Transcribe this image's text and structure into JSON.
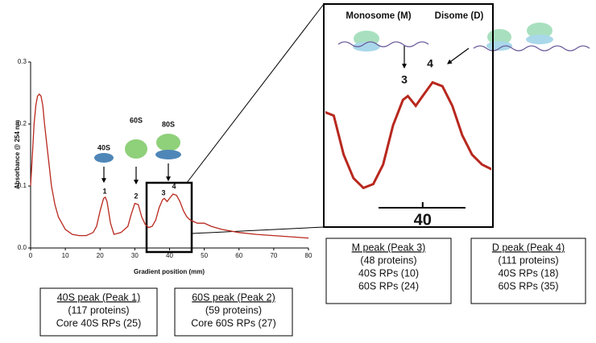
{
  "chart_data": {
    "type": "line",
    "ylabel": "Absorbance @ 254 nm",
    "xlabel": "Gradient position (mm)",
    "color": "#b8281e",
    "x": [
      0,
      0.5,
      1,
      1.5,
      2,
      2.5,
      3,
      3.5,
      4,
      5,
      6,
      7,
      8,
      10,
      12,
      14,
      16,
      18,
      19,
      20,
      21,
      21.5,
      22,
      23,
      24,
      26,
      28,
      29,
      30,
      31,
      32,
      33,
      34,
      35,
      36,
      37,
      38,
      38.5,
      39.3,
      40,
      41,
      42,
      43,
      44,
      45,
      46,
      48,
      50,
      52,
      55,
      60,
      65,
      70,
      75,
      80
    ],
    "values": [
      0.1,
      0.15,
      0.2,
      0.23,
      0.245,
      0.248,
      0.245,
      0.23,
      0.2,
      0.15,
      0.1,
      0.07,
      0.05,
      0.03,
      0.022,
      0.02,
      0.02,
      0.025,
      0.035,
      0.06,
      0.08,
      0.082,
      0.075,
      0.04,
      0.022,
      0.025,
      0.035,
      0.055,
      0.072,
      0.07,
      0.05,
      0.038,
      0.033,
      0.035,
      0.045,
      0.065,
      0.078,
      0.08,
      0.075,
      0.08,
      0.087,
      0.085,
      0.075,
      0.06,
      0.05,
      0.045,
      0.04,
      0.04,
      0.035,
      0.03,
      0.025,
      0.022,
      0.02,
      0.018,
      0.016
    ],
    "xlim": [
      0,
      80
    ],
    "xticks": [
      0,
      10,
      20,
      30,
      40,
      50,
      60,
      70,
      80
    ],
    "ylim": [
      0,
      0.3
    ],
    "yticks": [
      {
        "value": 0,
        "label": "0.0"
      },
      0.1,
      0.2,
      0.3
    ],
    "subunit_labels": [
      "40S",
      "60S",
      "80S"
    ],
    "peak_labels": [
      "1",
      "2",
      "3",
      "4"
    ]
  },
  "inset": {
    "title_left": "Monosome (M)",
    "title_right": "Disome (D)",
    "peak_labels": [
      "3",
      "4"
    ],
    "xlim": [
      37,
      44.5
    ],
    "ylim": [
      0.055,
      0.09
    ],
    "xticks": [
      40
    ]
  },
  "boxes": [
    {
      "title": "40S peak (Peak 1)",
      "lines": [
        "(117 proteins)",
        "Core 40S RPs (25)"
      ]
    },
    {
      "title": "60S peak (Peak 2)",
      "lines": [
        "(59 proteins)",
        "Core 60S RPs (27)"
      ]
    },
    {
      "title": "M peak (Peak 3)",
      "lines": [
        "(48 proteins)",
        "40S RPs (10)",
        "60S RPs (24)"
      ]
    },
    {
      "title": "D peak (Peak 4)",
      "lines": [
        "(111 proteins)",
        "40S RPs (18)",
        "60S RPs (35)"
      ]
    }
  ]
}
